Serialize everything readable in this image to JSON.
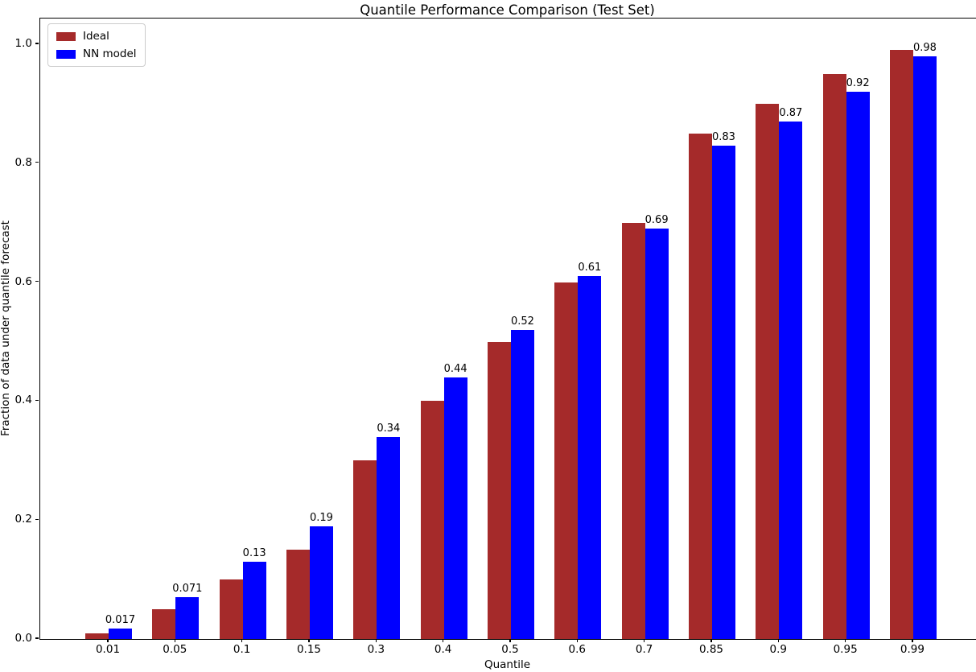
{
  "chart_data": {
    "type": "bar",
    "title": "Quantile Performance Comparison (Test Set)",
    "xlabel": "Quantile",
    "ylabel": "Fraction of data under quantile forecast",
    "categories": [
      "0.01",
      "0.05",
      "0.1",
      "0.15",
      "0.3",
      "0.4",
      "0.5",
      "0.6",
      "0.7",
      "0.85",
      "0.9",
      "0.95",
      "0.99"
    ],
    "series": [
      {
        "name": "Ideal",
        "color": "#A52A2A",
        "values": [
          0.01,
          0.05,
          0.1,
          0.15,
          0.3,
          0.4,
          0.5,
          0.6,
          0.7,
          0.85,
          0.9,
          0.95,
          0.99
        ]
      },
      {
        "name": "NN model",
        "color": "#0000FF",
        "values": [
          0.017,
          0.071,
          0.13,
          0.19,
          0.34,
          0.44,
          0.52,
          0.61,
          0.69,
          0.83,
          0.87,
          0.92,
          0.98
        ]
      }
    ],
    "bar_value_labels": [
      "0.017",
      "0.071",
      "0.13",
      "0.19",
      "0.34",
      "0.44",
      "0.52",
      "0.61",
      "0.69",
      "0.83",
      "0.87",
      "0.92",
      "0.98"
    ],
    "bar_value_labels_on_series": "NN model",
    "yticks": [
      "0.0",
      "0.2",
      "0.4",
      "0.6",
      "0.8",
      "1.0"
    ],
    "ytick_values": [
      0.0,
      0.2,
      0.4,
      0.6,
      0.8,
      1.0
    ],
    "ylim": [
      0,
      1.043
    ],
    "legend_position": "upper left",
    "grid": false,
    "background_color": "#ffffff",
    "text_color": "#000000"
  }
}
